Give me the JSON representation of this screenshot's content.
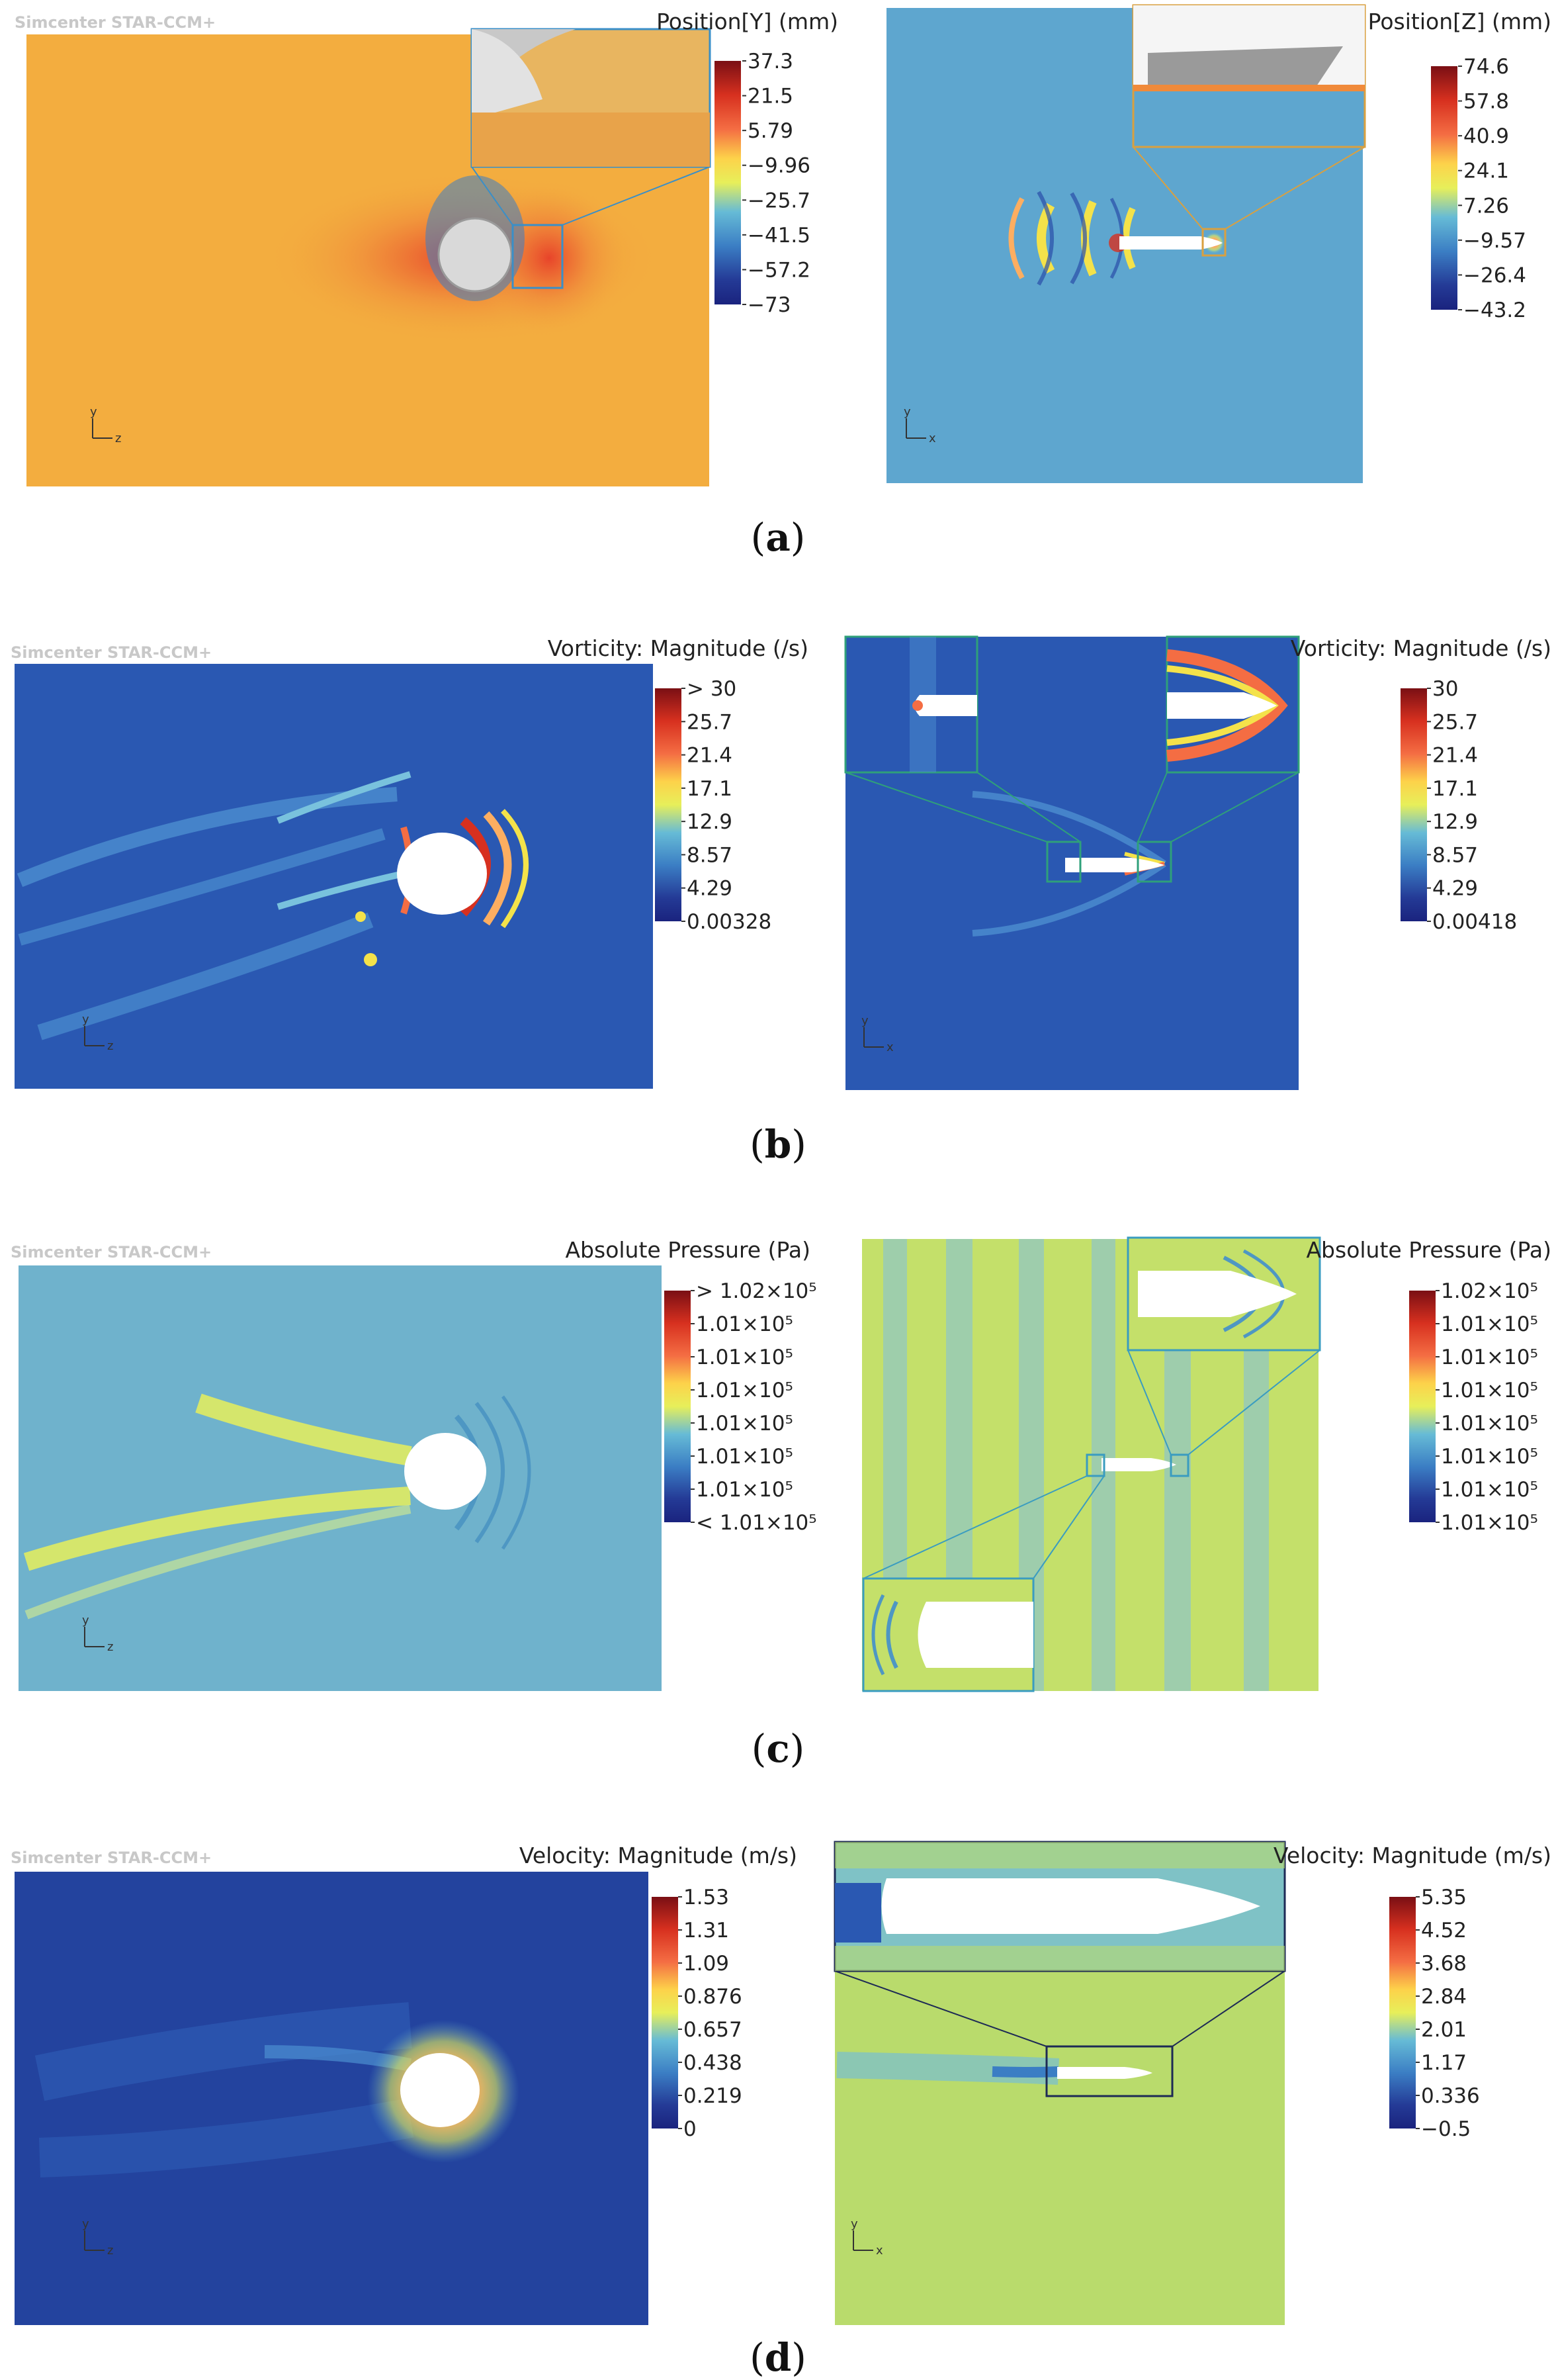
{
  "watermark": "Simcenter STAR-CCM+",
  "axis_glyphs": {
    "y": "y",
    "z": "z",
    "x": "x"
  },
  "rows": [
    {
      "sublabel": "a",
      "left": {
        "legend_title": "Position[Y] (mm)",
        "ticks": [
          "37.3",
          "21.5",
          "5.79",
          "−9.96",
          "−25.7",
          "−41.5",
          "−57.2",
          "−73"
        ],
        "axes": [
          "y",
          "z"
        ],
        "background": "#f3ad3f"
      },
      "right": {
        "legend_title": "Position[Z] (mm)",
        "ticks": [
          "74.6",
          "57.8",
          "40.9",
          "24.1",
          "7.26",
          "−9.57",
          "−26.4",
          "−43.2"
        ],
        "axes": [
          "y",
          "x"
        ],
        "background": "#5ea6cf"
      }
    },
    {
      "sublabel": "b",
      "left": {
        "legend_title": "Vorticity: Magnitude (/s)",
        "ticks": [
          "> 30",
          "25.7",
          "21.4",
          "17.1",
          "12.9",
          "8.57",
          "4.29",
          "0.00328"
        ],
        "axes": [
          "y",
          "z"
        ],
        "background": "#2a58b2"
      },
      "right": {
        "legend_title": "Vorticity: Magnitude (/s)",
        "ticks": [
          "30",
          "25.7",
          "21.4",
          "17.1",
          "12.9",
          "8.57",
          "4.29",
          "0.00418"
        ],
        "axes": [
          "y",
          "x"
        ],
        "background": "#2a58b2"
      }
    },
    {
      "sublabel": "c",
      "left": {
        "legend_title": "Absolute Pressure (Pa)",
        "ticks": [
          "> 1.02×10⁵",
          "1.01×10⁵",
          "1.01×10⁵",
          "1.01×10⁵",
          "1.01×10⁵",
          "1.01×10⁵",
          "1.01×10⁵",
          "< 1.01×10⁵"
        ],
        "axes": [
          "y",
          "z"
        ],
        "background": "#6fb2cc"
      },
      "right": {
        "legend_title": "Absolute Pressure (Pa)",
        "ticks": [
          "1.02×10⁵",
          "1.01×10⁵",
          "1.01×10⁵",
          "1.01×10⁵",
          "1.01×10⁵",
          "1.01×10⁵",
          "1.01×10⁵",
          "1.01×10⁵"
        ],
        "axes": [
          "y",
          "x"
        ],
        "background": "#c4e06a"
      }
    },
    {
      "sublabel": "d",
      "left": {
        "legend_title": "Velocity: Magnitude (m/s)",
        "ticks": [
          "1.53",
          "1.31",
          "1.09",
          "0.876",
          "0.657",
          "0.438",
          "0.219",
          "0"
        ],
        "axes": [
          "y",
          "z"
        ],
        "background": "#23439e"
      },
      "right": {
        "legend_title": "Velocity: Magnitude (m/s)",
        "ticks": [
          "5.35",
          "4.52",
          "3.68",
          "2.84",
          "2.01",
          "1.17",
          "0.336",
          "−0.5"
        ],
        "axes": [
          "y",
          "x"
        ],
        "background": "#b9db6c"
      }
    }
  ],
  "colors": {
    "scale": [
      "#7a0f14",
      "#d7301f",
      "#f46d43",
      "#fdae61",
      "#fee090",
      "#d9ef8b",
      "#66bbd6",
      "#3b7ec4",
      "#243a96",
      "#1a237e"
    ],
    "inset_frame_a_left": "#3a8fc8",
    "inset_frame_a_right": "#d9a040",
    "inset_frame_b": "#2fa07a",
    "inset_frame_c": "#3a9cc0",
    "inset_frame_d": "#1d2a55"
  }
}
